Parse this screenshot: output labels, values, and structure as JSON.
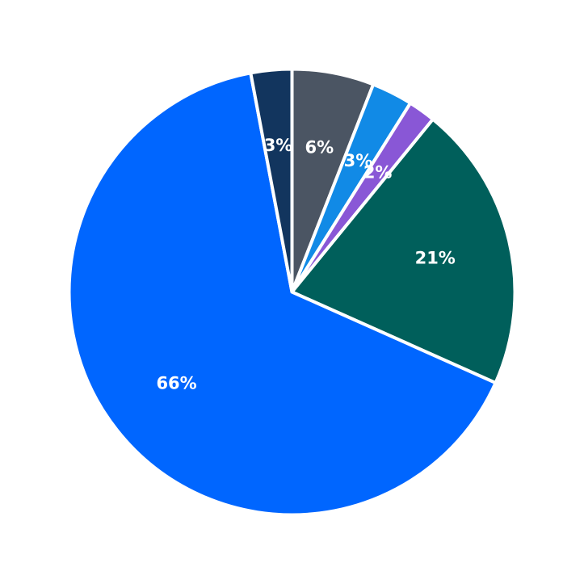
{
  "chart_data": {
    "type": "pie",
    "start_angle_deg": 90,
    "direction": "clockwise",
    "slices": [
      {
        "label": "6%",
        "value": 6,
        "color": "#4b5563"
      },
      {
        "label": "3%",
        "value": 3,
        "color": "#118ae6"
      },
      {
        "label": "2%",
        "value": 2,
        "color": "#8957d6"
      },
      {
        "label": "21%",
        "value": 21,
        "color": "#005f5b"
      },
      {
        "label": "66%",
        "value": 66,
        "color": "#0066ff"
      },
      {
        "label": "3%",
        "value": 3,
        "color": "#12355e"
      }
    ]
  }
}
